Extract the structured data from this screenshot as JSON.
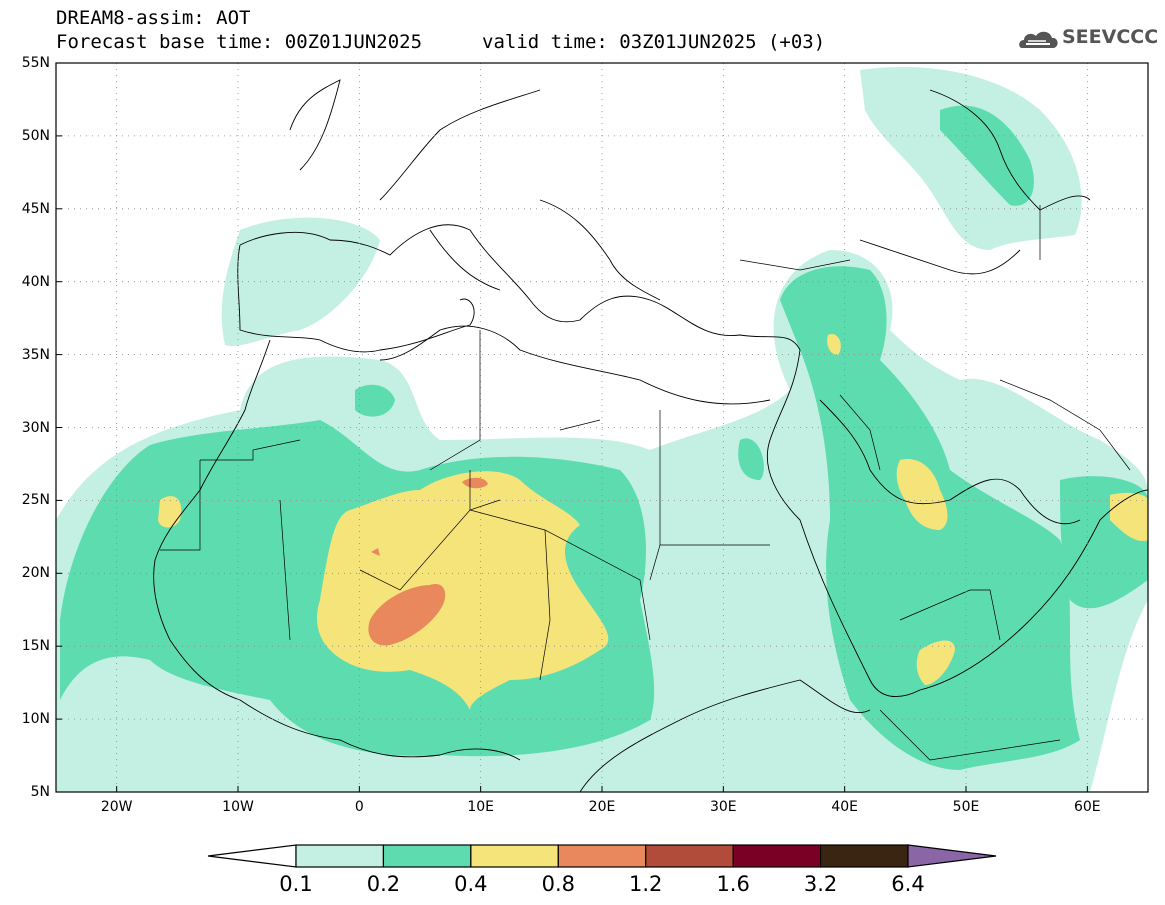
{
  "header": {
    "title": "DREAM8-assim: AOT",
    "base_time": "Forecast base time: 00Z01JUN2025",
    "valid_time": "valid time: 03Z01JUN2025 (+03)",
    "logo_text": "SEEVCCC",
    "logo_icon": "cloud-icon"
  },
  "map": {
    "lon_range": [
      -25,
      65
    ],
    "lat_range": [
      5,
      55
    ],
    "grid": "dotted",
    "lat_ticks": [
      {
        "value": 55,
        "label": "55N"
      },
      {
        "value": 50,
        "label": "50N"
      },
      {
        "value": 45,
        "label": "45N"
      },
      {
        "value": 40,
        "label": "40N"
      },
      {
        "value": 35,
        "label": "35N"
      },
      {
        "value": 30,
        "label": "30N"
      },
      {
        "value": 25,
        "label": "25N"
      },
      {
        "value": 20,
        "label": "20N"
      },
      {
        "value": 15,
        "label": "15N"
      },
      {
        "value": 10,
        "label": "10N"
      },
      {
        "value": 5,
        "label": "5N"
      }
    ],
    "lon_ticks": [
      {
        "value": -20,
        "label": "20W"
      },
      {
        "value": -10,
        "label": "10W"
      },
      {
        "value": 0,
        "label": "0"
      },
      {
        "value": 10,
        "label": "10E"
      },
      {
        "value": 20,
        "label": "20E"
      },
      {
        "value": 30,
        "label": "30E"
      },
      {
        "value": 40,
        "label": "40E"
      },
      {
        "value": 50,
        "label": "50E"
      },
      {
        "value": 60,
        "label": "60E"
      }
    ]
  },
  "colorbar": {
    "colors": [
      "#ffffff",
      "#c4f0e4",
      "#5ddcb0",
      "#f5e47a",
      "#e8885c",
      "#b24c3a",
      "#7a0026",
      "#3a2412",
      "#8a66a6"
    ],
    "labels": [
      "0.1",
      "0.2",
      "0.4",
      "0.8",
      "1.2",
      "1.6",
      "3.2",
      "6.4"
    ]
  }
}
